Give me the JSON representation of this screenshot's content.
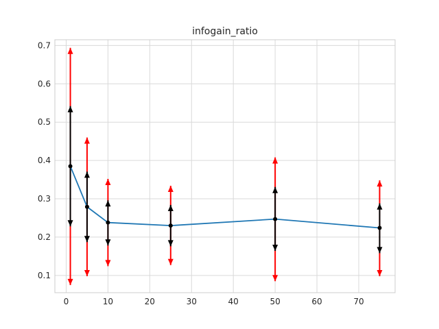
{
  "chart_data": {
    "type": "line",
    "title": "infogain_ratio",
    "xlabel": "",
    "ylabel": "",
    "xlim": [
      -2.7,
      78.7
    ],
    "ylim": [
      0.055,
      0.715
    ],
    "xticks": [
      0,
      10,
      20,
      30,
      40,
      50,
      60,
      70
    ],
    "yticks": [
      0.1,
      0.2,
      0.3,
      0.4,
      0.5,
      0.6,
      0.7
    ],
    "xtick_labels": [
      "0",
      "10",
      "20",
      "30",
      "40",
      "50",
      "60",
      "70"
    ],
    "ytick_labels": [
      "0.1",
      "0.2",
      "0.3",
      "0.4",
      "0.5",
      "0.6",
      "0.7"
    ],
    "grid": true,
    "legend": "none",
    "colors": {
      "line": "#1f77b4",
      "inner": "#000000",
      "outer": "#ff0000",
      "grid": "#d9d9d9",
      "frame": "#cccccc"
    },
    "series": [
      {
        "x": [
          1,
          5,
          10,
          25,
          50,
          75
        ],
        "y": [
          0.385,
          0.279,
          0.238,
          0.23,
          0.247,
          0.224
        ],
        "inner_low": [
          0.228,
          0.187,
          0.178,
          0.176,
          0.164,
          0.158
        ],
        "inner_high": [
          0.542,
          0.371,
          0.296,
          0.284,
          0.331,
          0.288
        ],
        "outer_low": [
          0.075,
          0.098,
          0.124,
          0.127,
          0.085,
          0.098
        ],
        "outer_high": [
          0.694,
          0.46,
          0.352,
          0.334,
          0.408,
          0.348
        ]
      }
    ]
  }
}
